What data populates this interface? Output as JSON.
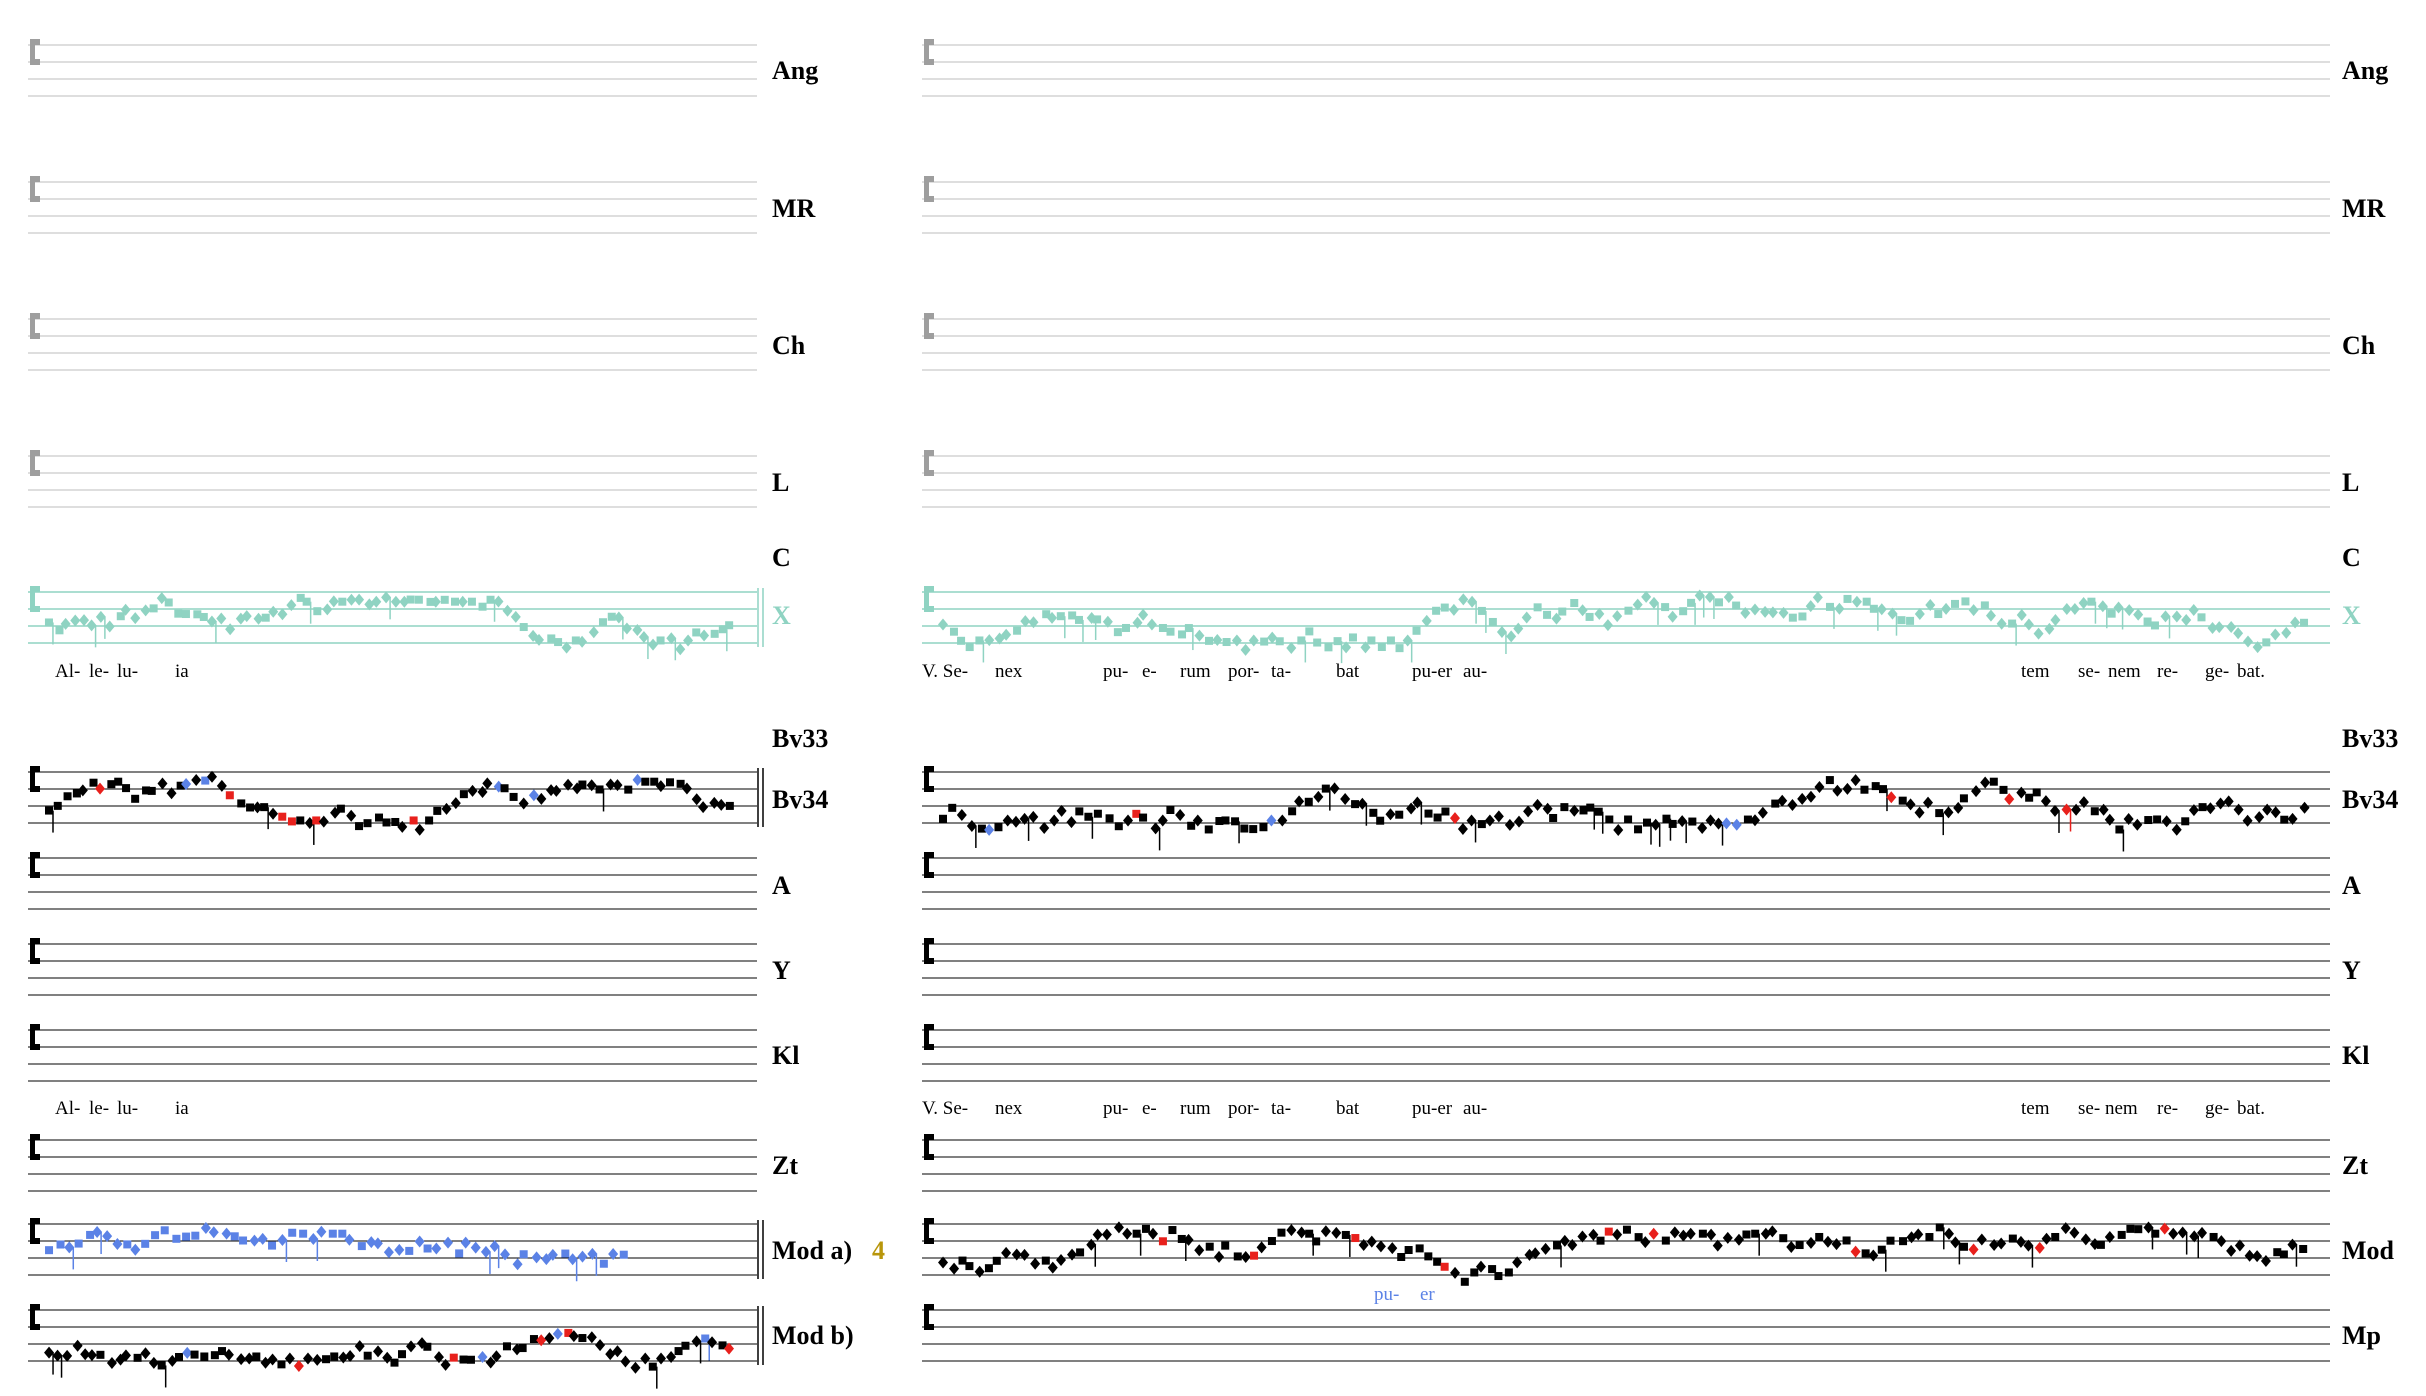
{
  "colors": {
    "empty_staff": "#bdbdbd",
    "clef_empty": "#9e9e9e",
    "x_staff": "#8fd3c2",
    "x_label": "#8fd3c2",
    "ink": "#000000",
    "red": "#e8201c",
    "blue": "#5b82e6",
    "variant_number": "#b8960b"
  },
  "score": {
    "left_panel": {
      "lyrics": [
        {
          "text": "Al-"
        },
        {
          "text": "le-"
        },
        {
          "text": "lu-"
        },
        {
          "text": "ia"
        }
      ]
    },
    "right_panel": {
      "lyrics": [
        {
          "text": "V. Se-"
        },
        {
          "text": "nex"
        },
        {
          "text": "pu-"
        },
        {
          "text": "e-"
        },
        {
          "text": "rum"
        },
        {
          "text": "por-"
        },
        {
          "text": "ta-"
        },
        {
          "text": "bat"
        },
        {
          "text": "pu-er"
        },
        {
          "text": "au-"
        },
        {
          "text": "tem"
        },
        {
          "text": "se-"
        },
        {
          "text": "nem"
        },
        {
          "text": "re-"
        },
        {
          "text": "ge-"
        },
        {
          "text": "bat."
        }
      ],
      "lyrics_alt": [
        {
          "text": "V. Se-"
        },
        {
          "text": "nex"
        },
        {
          "text": "pu-"
        },
        {
          "text": "e-"
        },
        {
          "text": "rum"
        },
        {
          "text": "por-"
        },
        {
          "text": "ta-"
        },
        {
          "text": "bat"
        },
        {
          "text": "pu-er"
        },
        {
          "text": "au-"
        },
        {
          "text": "tem"
        },
        {
          "text": "se-"
        },
        {
          "text": "nem"
        },
        {
          "text": "re-"
        },
        {
          "text": "ge-"
        },
        {
          "text": "bat."
        }
      ],
      "variant_lyrics": [
        {
          "text": "pu-"
        },
        {
          "text": "er"
        }
      ]
    },
    "labels_left": {
      "ang": "Ang",
      "mr": "MR",
      "ch": "Ch",
      "l": "L",
      "c": "C",
      "x": "X",
      "bv33": "Bv33",
      "bv34": "Bv34",
      "a": "A",
      "y": "Y",
      "kl": "Kl",
      "zt": "Zt",
      "mod_a": "Mod a)",
      "mod_a_num": "4",
      "mod_b": "Mod b)"
    },
    "labels_right": {
      "ang": "Ang",
      "mr": "MR",
      "ch": "Ch",
      "l": "L",
      "c": "C",
      "x": "X",
      "bv33": "Bv33",
      "bv34": "Bv34",
      "a": "A",
      "y": "Y",
      "kl": "Kl",
      "zt": "Zt",
      "mod": "Mod",
      "mp": "Mp"
    }
  }
}
